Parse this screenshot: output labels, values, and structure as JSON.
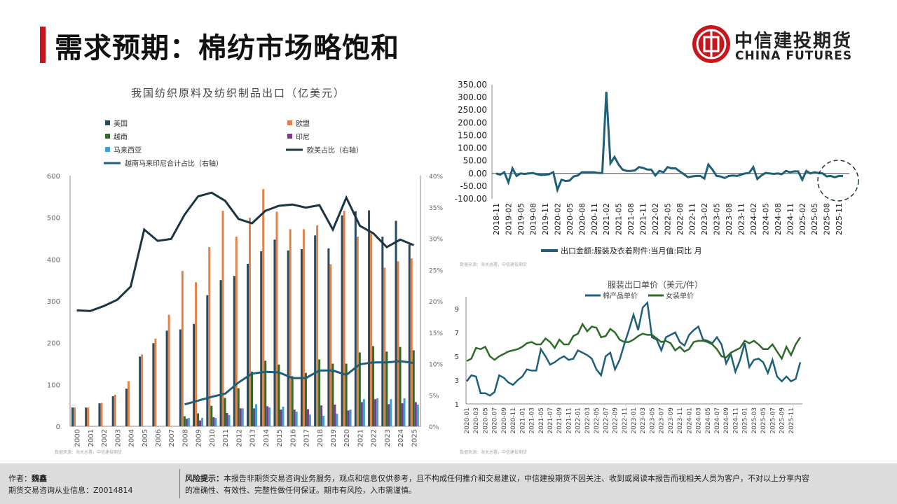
{
  "header": {
    "title": "需求预期：棉纺市场略饱和",
    "logo_cn": "中信建投期货",
    "logo_en": "CHINA FUTURES",
    "accent": "#c8161d"
  },
  "source_note": "数据来源：海关总署，中信建投期货",
  "footer": {
    "author_label": "作者：",
    "author": "魏鑫",
    "license": "期货交易咨询从业信息：Z0014814",
    "risk_label": "风险提示：",
    "risk_text_1": "本报告非期货交易咨询业务服务，观点和信息仅供参考，且不构成任何推介和交易建议，中信建投期货不因关注、收到或阅读本报告而视相关人员为客户，不对以上分享内容",
    "risk_text_2": "的准确性、有效性、完整性做任何保证。期市有风险，入市需谨慎。"
  },
  "chart_data": [
    {
      "type": "bar",
      "title": "我国纺织原料及纺织制品出口（亿美元）",
      "categories": [
        "2000",
        "2001",
        "2002",
        "2003",
        "2004",
        "2005",
        "2006",
        "2007",
        "2008",
        "2009",
        "2010",
        "2011",
        "2012",
        "2013",
        "2014",
        "2015",
        "2016",
        "2017",
        "2018",
        "2019",
        "2020",
        "2021",
        "2022",
        "2023",
        "2024",
        "2025"
      ],
      "ylim": [
        0,
        600
      ],
      "yticks": [
        "0",
        "100",
        "200",
        "300",
        "400",
        "500",
        "600"
      ],
      "y2lim": [
        0,
        40
      ],
      "y2ticks": [
        "0%",
        "5%",
        "10%",
        "15%",
        "20%",
        "25%",
        "30%",
        "35%",
        "40%"
      ],
      "series": [
        {
          "name": "美国",
          "color": "#2c4a5c",
          "values": [
            45,
            45,
            55,
            72,
            90,
            167,
            199,
            229,
            232,
            245,
            314,
            350,
            360,
            389,
            419,
            447,
            421,
            424,
            457,
            426,
            505,
            515,
            517,
            454,
            492,
            435
          ]
        },
        {
          "name": "欧盟",
          "color": "#e0834a",
          "values": [
            45,
            45,
            56,
            76,
            108,
            172,
            210,
            267,
            372,
            345,
            429,
            516,
            454,
            499,
            568,
            514,
            472,
            472,
            481,
            388,
            516,
            454,
            462,
            380,
            395,
            402
          ]
        },
        {
          "name": "越南",
          "color": "#2e6a2a",
          "values": [
            0,
            0,
            0,
            0,
            0,
            0,
            0,
            0,
            24,
            31,
            49,
            68,
            91,
            131,
            157,
            148,
            120,
            128,
            160,
            150,
            150,
            177,
            192,
            179,
            190,
            182
          ]
        },
        {
          "name": "印尼",
          "color": "#7b3a8c",
          "values": [
            0,
            0,
            0,
            0,
            0,
            0,
            0,
            0,
            18,
            14,
            22,
            32,
            43,
            43,
            48,
            40,
            40,
            41,
            50,
            52,
            38,
            58,
            65,
            53,
            55,
            58
          ]
        },
        {
          "name": "马来西亚",
          "color": "#3fa0cc",
          "values": [
            0,
            0,
            0,
            0,
            0,
            0,
            0,
            0,
            20,
            20,
            20,
            27,
            43,
            53,
            45,
            47,
            35,
            28,
            25,
            30,
            40,
            65,
            67,
            65,
            67,
            52
          ]
        }
      ],
      "lines": [
        {
          "name": "欧美占比（右轴）",
          "color": "#1b3642",
          "values": [
            18.5,
            18.4,
            19.2,
            20.2,
            22.3,
            31.4,
            29.6,
            29.9,
            33.8,
            36.7,
            37.3,
            36.0,
            33.1,
            32.4,
            34.4,
            35.2,
            35.4,
            34.9,
            35.3,
            31.4,
            36.5,
            32.0,
            30.8,
            28.6,
            29.8,
            28.9
          ]
        },
        {
          "name": "越南马来印尼合计占比（右轴）",
          "color": "#1f5f78",
          "values": [
            null,
            null,
            null,
            null,
            null,
            null,
            null,
            null,
            3.5,
            4.1,
            4.7,
            5.2,
            7.0,
            8.4,
            8.7,
            8.6,
            7.7,
            7.7,
            8.9,
            8.9,
            8.2,
            9.9,
            10.2,
            10.2,
            10.4,
            10.1
          ]
        }
      ],
      "legend": "top"
    },
    {
      "type": "line",
      "ylim": [
        -100,
        350
      ],
      "yticks": [
        "-100.00",
        "-50.00",
        "0.00",
        "50.00",
        "100.00",
        "150.00",
        "200.00",
        "250.00",
        "300.00",
        "350.00"
      ],
      "start": "2018-11",
      "xticks": [
        "2018-11",
        "2019-02",
        "2019-05",
        "2019-08",
        "2019-11",
        "2020-02",
        "2020-05",
        "2020-08",
        "2020-11",
        "2021-02",
        "2021-05",
        "2021-08",
        "2021-11",
        "2022-02",
        "2022-05",
        "2022-08",
        "2022-11",
        "2023-02",
        "2023-05",
        "2023-08",
        "2023-11",
        "2024-02",
        "2024-05",
        "2024-08",
        "2024-11",
        "2025-02",
        "2025-05",
        "2025-08",
        "2025-11"
      ],
      "series": [
        {
          "name": "出口金额:服装及衣着附件:当月值:同比  月",
          "color": "#1f5f78",
          "values": [
            0,
            -5,
            5,
            -35,
            20,
            -10,
            0,
            -2,
            0,
            2,
            -3,
            -6,
            -5,
            -3,
            5,
            -65,
            -25,
            -30,
            -28,
            -12,
            -8,
            5,
            5,
            5,
            5,
            2,
            2,
            322,
            40,
            65,
            35,
            15,
            10,
            10,
            12,
            25,
            22,
            15,
            15,
            -8,
            10,
            5,
            25,
            20,
            20,
            8,
            -3,
            -15,
            -12,
            -10,
            -10,
            -20,
            35,
            15,
            -10,
            -12,
            -18,
            -10,
            -8,
            -10,
            -5,
            0,
            2,
            25,
            -22,
            -8,
            2,
            0,
            -2,
            0,
            -3,
            10,
            5,
            8,
            8,
            -25,
            10,
            0,
            5,
            2,
            0,
            -12,
            -10,
            -15,
            -10,
            -10
          ]
        }
      ],
      "legend": "bottom"
    },
    {
      "type": "line",
      "title": "服装出口单价（美元/件）",
      "ylim": [
        1,
        10
      ],
      "yticks": [
        "1",
        "3",
        "5",
        "7",
        "9"
      ],
      "xticks": [
        "2020-01",
        "2020-03",
        "2020-05",
        "2020-07",
        "2020-09",
        "2020-11",
        "2021-01",
        "2021-03",
        "2021-05",
        "2021-07",
        "2021-09",
        "2021-11",
        "2022-01",
        "2022-03",
        "2022-05",
        "2022-07",
        "2022-09",
        "2022-11",
        "2023-01",
        "2023-03",
        "2023-05",
        "2023-07",
        "2023-09",
        "2023-11",
        "2024-01",
        "2024-03",
        "2024-05",
        "2024-07",
        "2024-09",
        "2024-11",
        "2025-01",
        "2025-03",
        "2025-05",
        "2025-07",
        "2025-09",
        "2025-11"
      ],
      "series": [
        {
          "name": "棉产品单价",
          "color": "#1f5f78",
          "values": [
            2.9,
            3.4,
            3.3,
            1.9,
            1.9,
            1.7,
            2.0,
            3.4,
            3.2,
            2.8,
            2.6,
            3.0,
            3.3,
            3.9,
            3.8,
            3.8,
            5.6,
            5.0,
            4.3,
            4.5,
            4.8,
            5.0,
            4.7,
            4.8,
            5.5,
            5.3,
            5.1,
            4.8,
            3.9,
            3.4,
            5.0,
            5.3,
            3.9,
            4.7,
            6.0,
            7.2,
            8.5,
            7.2,
            9.1,
            9.5,
            6.6,
            6.4,
            5.5,
            6.6,
            6.8,
            7.0,
            6.2,
            5.9,
            6.8,
            7.2,
            7.5,
            6.4,
            6.3,
            6.1,
            6.6,
            6.0,
            4.4,
            5.2,
            3.7,
            4.7,
            6.1,
            4.1,
            4.7,
            4.8,
            4.5,
            3.6,
            4.7,
            3.3,
            2.9,
            3.3,
            2.9,
            3.1,
            4.5
          ]
        },
        {
          "name": "女装单价",
          "color": "#2e6a2a",
          "values": [
            4.6,
            4.8,
            5.7,
            5.6,
            5.8,
            5.0,
            4.7,
            5.0,
            5.2,
            5.4,
            5.5,
            5.6,
            5.8,
            6.1,
            6.2,
            6.0,
            6.0,
            6.5,
            6.2,
            5.7,
            6.4,
            6.0,
            6.0,
            6.7,
            6.9,
            7.7,
            7.1,
            7.5,
            7.4,
            6.6,
            6.7,
            7.3,
            7.0,
            6.4,
            6.2,
            6.2,
            6.4,
            6.7,
            6.9,
            6.8,
            6.8,
            6.5,
            6.2,
            6.3,
            6.1,
            5.5,
            5.8,
            5.4,
            5.6,
            6.2,
            6.3,
            6.3,
            6.2,
            6.0,
            5.6,
            5.0,
            4.9,
            5.3,
            5.5,
            5.7,
            6.3,
            6.1,
            6.3,
            6.0,
            5.6,
            5.6,
            6.0,
            5.4,
            4.8,
            5.8,
            5.1,
            6.0,
            6.6
          ]
        }
      ],
      "legend": "top"
    }
  ]
}
